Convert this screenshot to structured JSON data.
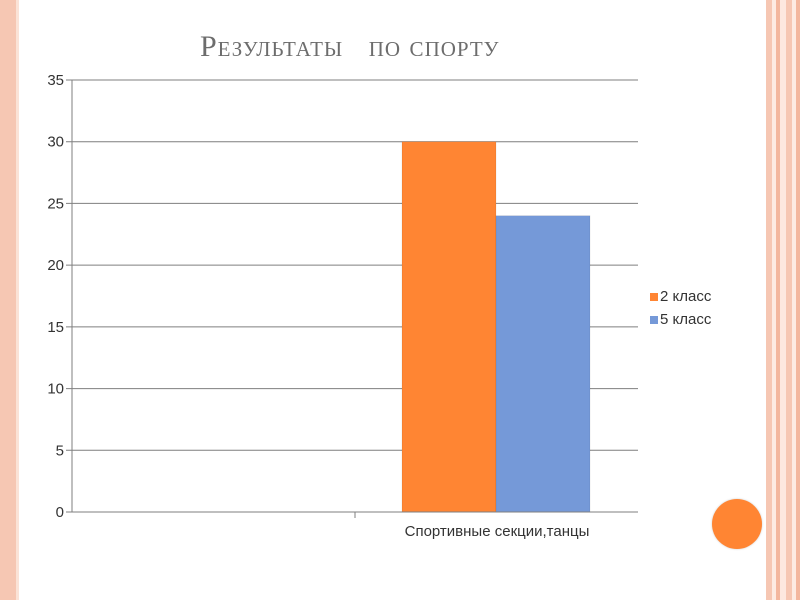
{
  "slide": {
    "title": "Результаты   по спорту"
  },
  "colors": {
    "series_2": "#ff8533",
    "series_5": "#7599d8",
    "gridline": "#7f7f7f",
    "decoration": "#ff8533"
  },
  "chart_data": {
    "type": "bar",
    "title": "",
    "xlabel": "",
    "ylabel": "",
    "categories": [
      "Спортивные секции,танцы"
    ],
    "series": [
      {
        "name": "2 класс",
        "values": [
          30
        ]
      },
      {
        "name": "5 класс",
        "values": [
          24
        ]
      }
    ],
    "ylim": [
      0,
      35
    ],
    "yticks": [
      "0",
      "5",
      "10",
      "15",
      "20",
      "25",
      "30",
      "35"
    ],
    "grid": true,
    "legend": "right"
  }
}
